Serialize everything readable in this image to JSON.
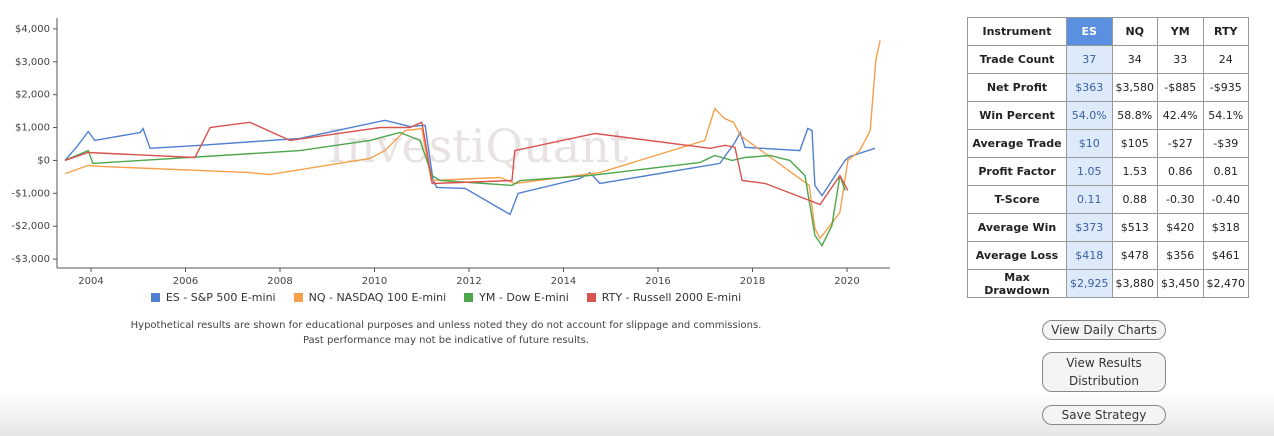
{
  "chart_data": {
    "type": "line",
    "watermark": "InvestiQuant",
    "xlim": [
      2003.28,
      2020.91
    ],
    "xticks": [
      2004,
      2006,
      2008,
      2010,
      2012,
      2014,
      2016,
      2018,
      2020
    ],
    "ylim": [
      -3270,
      4330
    ],
    "yticks": [
      {
        "value": -3000,
        "label": "-$3,000"
      },
      {
        "value": -2000,
        "label": "-$2,000"
      },
      {
        "value": -1000,
        "label": "-$1,000"
      },
      {
        "value": 0,
        "label": "$0"
      },
      {
        "value": 1000,
        "label": "$1,000"
      },
      {
        "value": 2000,
        "label": "$2,000"
      },
      {
        "value": 3000,
        "label": "$3,000"
      },
      {
        "value": 4000,
        "label": "$4,000"
      }
    ],
    "grid": false,
    "series": [
      {
        "name": "ES - S&P 500 E-mini",
        "color": "#4f7fcf",
        "x": [
          2003.45,
          2003.72,
          2003.94,
          2004.08,
          2005.04,
          2005.1,
          2005.25,
          2006.31,
          2008.42,
          2010.22,
          2010.75,
          2011.07,
          2011.24,
          2011.32,
          2011.92,
          2012.87,
          2013.04,
          2014.35,
          2014.56,
          2014.77,
          2017.31,
          2017.63,
          2017.74,
          2017.84,
          2019.0,
          2019.17,
          2019.26,
          2019.32,
          2019.47,
          2019.96,
          2020.06,
          2020.59
        ],
        "values": [
          0,
          450,
          880,
          610,
          850,
          970,
          370,
          460,
          670,
          1220,
          1030,
          1070,
          -610,
          -820,
          -850,
          -1640,
          -1000,
          -550,
          -370,
          -700,
          -90,
          550,
          850,
          400,
          300,
          970,
          910,
          -760,
          -1070,
          0,
          120,
          370
        ]
      },
      {
        "name": "NQ - NASDAQ 100 E-mini",
        "color": "#f4a04d",
        "x": [
          2003.45,
          2003.94,
          2004.2,
          2007.36,
          2007.78,
          2009.9,
          2010.22,
          2010.65,
          2011.0,
          2011.2,
          2012.66,
          2012.97,
          2014.77,
          2016.99,
          2017.2,
          2017.4,
          2017.6,
          2017.74,
          2019.2,
          2019.32,
          2019.43,
          2019.64,
          2019.85,
          2020.02,
          2020.27,
          2020.49,
          2020.61,
          2020.7
        ],
        "values": [
          -400,
          -150,
          -180,
          -370,
          -430,
          60,
          300,
          910,
          970,
          -610,
          -520,
          -700,
          -370,
          610,
          1580,
          1280,
          1160,
          760,
          -760,
          -2070,
          -2370,
          -1980,
          -1580,
          0,
          300,
          910,
          3040,
          3650
        ]
      },
      {
        "name": "YM - Dow E-mini",
        "color": "#4ca64c",
        "x": [
          2003.45,
          2003.94,
          2004.04,
          2008.42,
          2009.9,
          2010.54,
          2010.96,
          2011.22,
          2011.39,
          2012.02,
          2012.91,
          2013.08,
          2014.56,
          2016.89,
          2017.2,
          2017.57,
          2017.84,
          2018.37,
          2018.79,
          2019.11,
          2019.32,
          2019.47,
          2019.68,
          2019.85,
          2019.96
        ],
        "values": [
          0,
          300,
          -90,
          300,
          610,
          850,
          610,
          -460,
          -610,
          -670,
          -760,
          -610,
          -460,
          -60,
          150,
          0,
          90,
          150,
          0,
          -460,
          -2280,
          -2590,
          -1980,
          -460,
          -910
        ]
      },
      {
        "name": "RTY - Russell 2000 E-mini",
        "color": "#d9534f",
        "x": [
          2003.45,
          2003.94,
          2006.2,
          2006.52,
          2007.36,
          2008.21,
          2010.12,
          2010.75,
          2011.0,
          2011.07,
          2011.22,
          2011.81,
          2012.91,
          2012.97,
          2014.67,
          2017.1,
          2017.42,
          2017.63,
          2017.78,
          2018.27,
          2019.43,
          2019.85,
          2020.02
        ],
        "values": [
          0,
          240,
          90,
          1000,
          1160,
          610,
          1000,
          1000,
          1160,
          610,
          -700,
          -670,
          -610,
          300,
          820,
          370,
          460,
          400,
          -610,
          -700,
          -1340,
          -460,
          -910
        ]
      }
    ],
    "notes": [
      "Hypothetical results are shown for educational purposes and unless noted they do not account for slippage and commissions.",
      "Past performance may not be indicative of future results."
    ]
  },
  "table": {
    "header": [
      "Instrument",
      "ES",
      "NQ",
      "YM",
      "RTY"
    ],
    "rows": [
      [
        "Trade Count",
        "37",
        "34",
        "33",
        "24"
      ],
      [
        "Net Profit",
        "$363",
        "$3,580",
        "-$885",
        "-$935"
      ],
      [
        "Win Percent",
        "54.0%",
        "58.8%",
        "42.4%",
        "54.1%"
      ],
      [
        "Average Trade",
        "$10",
        "$105",
        "-$27",
        "-$39"
      ],
      [
        "Profit Factor",
        "1.05",
        "1.53",
        "0.86",
        "0.81"
      ],
      [
        "T-Score",
        "0.11",
        "0.88",
        "-0.30",
        "-0.40"
      ],
      [
        "Average Win",
        "$373",
        "$513",
        "$420",
        "$318"
      ],
      [
        "Average Loss",
        "$418",
        "$478",
        "$356",
        "$461"
      ],
      [
        "Max Drawdown",
        "$2,925",
        "$3,880",
        "$3,450",
        "$2,470"
      ]
    ]
  },
  "buttons": [
    "View Daily Charts",
    "View Results Distribution",
    "Save Strategy"
  ]
}
